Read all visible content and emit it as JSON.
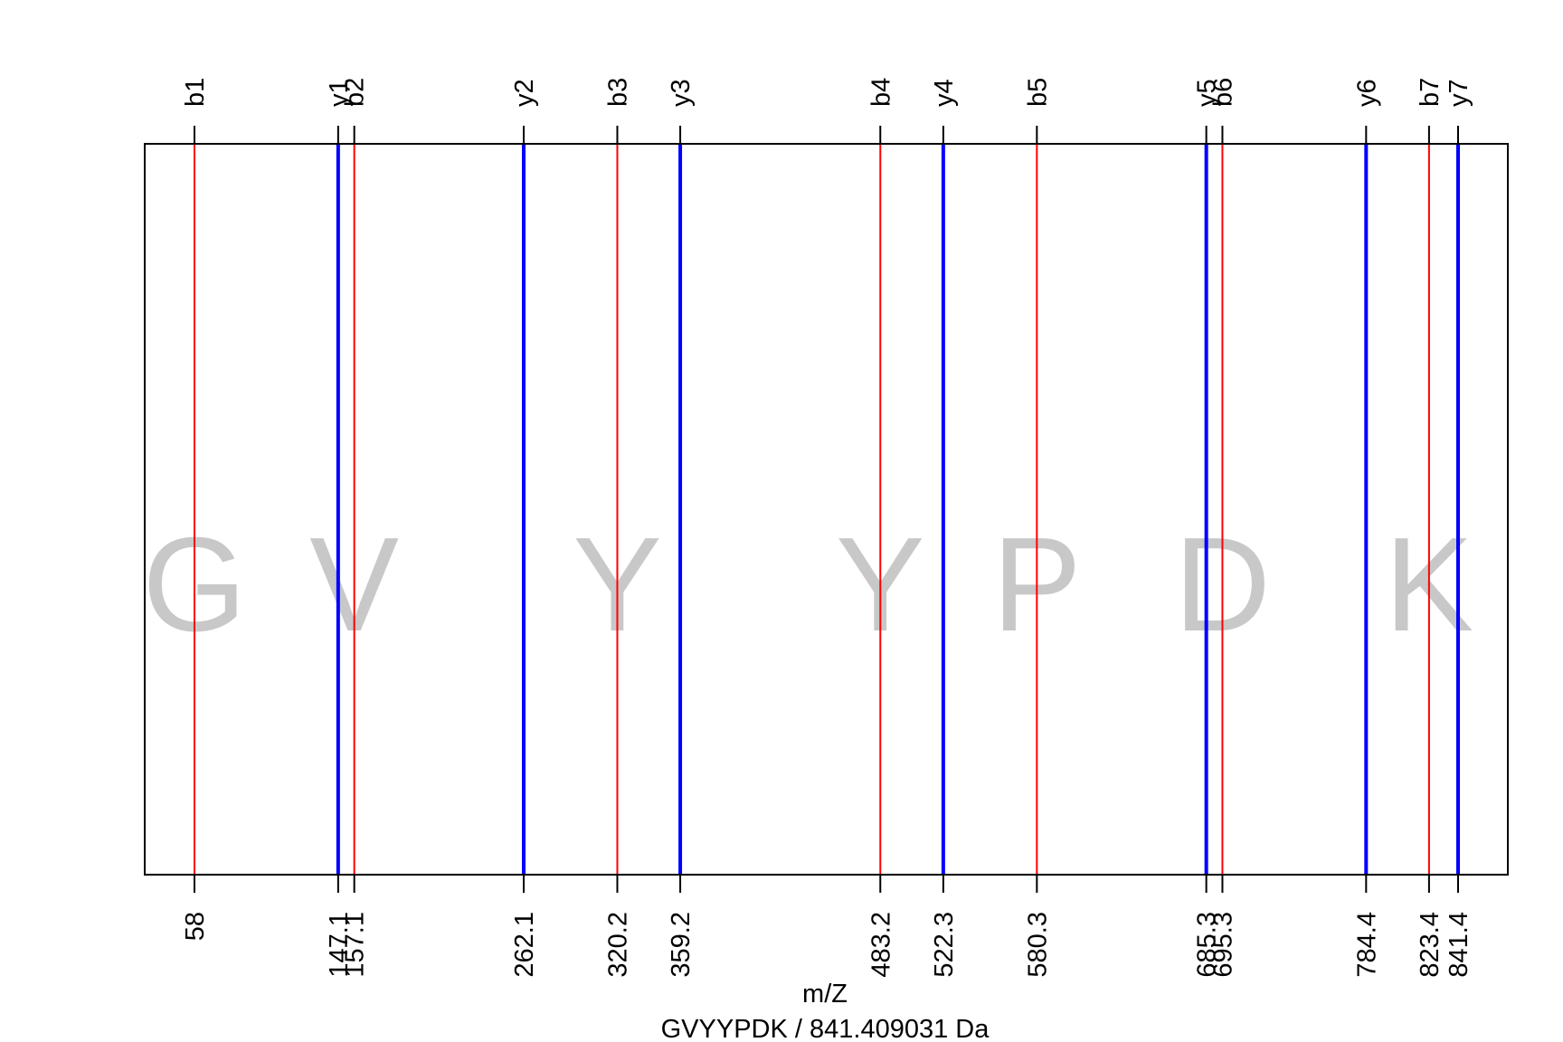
{
  "chart_data": {
    "type": "spectrum",
    "xlabel": "m/Z",
    "caption": "GVYYPDK / 841.409031 Da",
    "xlim": [
      0,
      900
    ],
    "series": [
      {
        "name": "b",
        "color": "#ff0000"
      },
      {
        "name": "y",
        "color": "#0000ff"
      }
    ],
    "ions": [
      {
        "label": "b1",
        "mz": 58.03,
        "tick": "58",
        "series": "b"
      },
      {
        "label": "y1",
        "mz": 147.11,
        "tick": "147.1",
        "series": "y"
      },
      {
        "label": "b2",
        "mz": 157.1,
        "tick": "157.1",
        "series": "b"
      },
      {
        "label": "y2",
        "mz": 262.14,
        "tick": "262.1",
        "series": "y"
      },
      {
        "label": "b3",
        "mz": 320.17,
        "tick": "320.2",
        "series": "b"
      },
      {
        "label": "y3",
        "mz": 359.19,
        "tick": "359.2",
        "series": "y"
      },
      {
        "label": "b4",
        "mz": 483.23,
        "tick": "483.2",
        "series": "b"
      },
      {
        "label": "y4",
        "mz": 522.26,
        "tick": "522.3",
        "series": "y"
      },
      {
        "label": "b5",
        "mz": 580.28,
        "tick": "580.3",
        "series": "b"
      },
      {
        "label": "y5",
        "mz": 685.32,
        "tick": "685.3",
        "series": "y"
      },
      {
        "label": "b6",
        "mz": 695.31,
        "tick": "695.3",
        "series": "b"
      },
      {
        "label": "y6",
        "mz": 784.39,
        "tick": "784.4",
        "series": "y"
      },
      {
        "label": "b7",
        "mz": 823.4,
        "tick": "823.4",
        "series": "b"
      },
      {
        "label": "y7",
        "mz": 841.41,
        "tick": "841.4",
        "series": "y"
      }
    ],
    "residues": [
      {
        "letter": "G",
        "mz": 0
      },
      {
        "letter": "V",
        "mz": 157.1
      },
      {
        "letter": "Y",
        "mz": 320.17
      },
      {
        "letter": "Y",
        "mz": 483.23
      },
      {
        "letter": "P",
        "mz": 580.28
      },
      {
        "letter": "D",
        "mz": 695.31
      },
      {
        "letter": "K",
        "mz": 823.4
      }
    ]
  }
}
